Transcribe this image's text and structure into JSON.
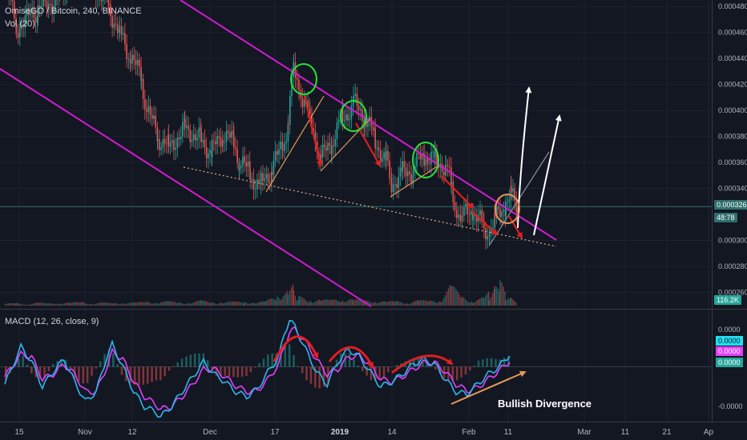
{
  "header": {
    "symbol_line": "OmiseGO / Bitcoin, 240, BINANCE",
    "vol_line": "Vol (20)",
    "macd_line": "MACD (12, 26, close, 9)"
  },
  "colors": {
    "background": "#131722",
    "up_candle": "#26a69a",
    "down_candle": "#ef5350",
    "channel": "#d21bd2",
    "macd_line": "#2ab6f0",
    "signal_line": "#e040fb",
    "arrow_red": "#e01f1f",
    "arrow_white": "#ffffff",
    "trend_orange": "#e59a5a",
    "circle_green": "#27e03b",
    "circle_orange": "#e5935a"
  },
  "price_badges": {
    "last_price": "0.000326",
    "countdown": "48:78",
    "volume": "116.2K"
  },
  "macd_badges": {
    "macd": "0.0000",
    "signal": "0.0000",
    "histogram": "0.0000"
  },
  "annotations": {
    "divergence_label": "Bullish Divergence"
  },
  "chart_data": {
    "type": "candlestick",
    "symbol": "OmiseGO / Bitcoin",
    "interval": "240",
    "exchange": "BINANCE",
    "price_axis": {
      "ticks": [
        "0.000480",
        "0.000460",
        "0.000440",
        "0.000420",
        "0.000400",
        "0.000380",
        "0.000360",
        "0.000340",
        "0.000300",
        "0.000280",
        "0.000260"
      ],
      "ylim": [
        0.000248,
        0.000485
      ]
    },
    "macd_axis": {
      "ticks": [
        "0.0000",
        "-0.0000"
      ]
    },
    "time_axis": {
      "labels": [
        "15",
        "Nov",
        "12",
        "Dec",
        "17",
        "2019",
        "14",
        "Feb",
        "11",
        "Mar",
        "11",
        "21",
        "Ap"
      ]
    },
    "price_path": [
      [
        0,
        0.000495
      ],
      [
        2,
        0.000465
      ],
      [
        6,
        0.000475
      ],
      [
        10,
        0.00049
      ],
      [
        14,
        0.00052
      ],
      [
        16,
        0.0005
      ],
      [
        19,
        0.00048
      ],
      [
        21,
        0.00046
      ],
      [
        23,
        0.00044
      ],
      [
        25,
        0.000425
      ],
      [
        26,
        0.0004
      ],
      [
        28,
        0.00038
      ],
      [
        30,
        0.000372
      ],
      [
        33,
        0.000388
      ],
      [
        36,
        0.000378
      ],
      [
        38,
        0.000368
      ],
      [
        40,
        0.000382
      ],
      [
        42,
        0.000375
      ],
      [
        43,
        0.000362
      ],
      [
        45,
        0.00035
      ],
      [
        47,
        0.000343
      ],
      [
        49,
        0.000355
      ],
      [
        51,
        0.000372
      ],
      [
        52,
        0.000392
      ],
      [
        53,
        0.000432
      ],
      [
        54,
        0.000418
      ],
      [
        56,
        0.000395
      ],
      [
        57,
        0.000378
      ],
      [
        58,
        0.000362
      ],
      [
        60,
        0.000375
      ],
      [
        62,
        0.000395
      ],
      [
        64,
        0.000405
      ],
      [
        66,
        0.000395
      ],
      [
        68,
        0.000378
      ],
      [
        70,
        0.00036
      ],
      [
        71,
        0.000345
      ],
      [
        73,
        0.000352
      ],
      [
        75,
        0.000355
      ],
      [
        77,
        0.000365
      ],
      [
        79,
        0.000362
      ],
      [
        81,
        0.000358
      ],
      [
        82,
        0.00034
      ],
      [
        83,
        0.000322
      ],
      [
        84,
        0.000318
      ],
      [
        86,
        0.000322
      ],
      [
        88,
        0.00031
      ],
      [
        89,
        0.000306
      ],
      [
        90,
        0.000315
      ],
      [
        92,
        0.000328
      ],
      [
        93,
        0.000334
      ],
      [
        94,
        0.000326
      ]
    ],
    "price_x_range": [
      0,
      130
    ],
    "volume_y_range": [
      0,
      300
    ],
    "volume": [
      [
        0,
        20
      ],
      [
        2,
        25
      ],
      [
        4,
        18
      ],
      [
        6,
        30
      ],
      [
        8,
        22
      ],
      [
        10,
        35
      ],
      [
        12,
        28
      ],
      [
        14,
        40
      ],
      [
        16,
        24
      ],
      [
        18,
        30
      ],
      [
        20,
        26
      ],
      [
        22,
        34
      ],
      [
        24,
        28
      ],
      [
        26,
        45
      ],
      [
        28,
        38
      ],
      [
        30,
        42
      ],
      [
        32,
        36
      ],
      [
        34,
        30
      ],
      [
        36,
        50
      ],
      [
        38,
        40
      ],
      [
        40,
        34
      ],
      [
        42,
        38
      ],
      [
        44,
        46
      ],
      [
        46,
        30
      ],
      [
        48,
        44
      ],
      [
        50,
        120
      ],
      [
        52,
        160
      ],
      [
        53,
        210
      ],
      [
        54,
        90
      ],
      [
        56,
        70
      ],
      [
        58,
        60
      ],
      [
        60,
        55
      ],
      [
        62,
        80
      ],
      [
        64,
        65
      ],
      [
        66,
        50
      ],
      [
        68,
        60
      ],
      [
        70,
        40
      ],
      [
        72,
        45
      ],
      [
        74,
        38
      ],
      [
        76,
        55
      ],
      [
        78,
        48
      ],
      [
        80,
        70
      ],
      [
        82,
        210
      ],
      [
        84,
        90
      ],
      [
        86,
        60
      ],
      [
        88,
        80
      ],
      [
        89,
        140
      ],
      [
        90,
        200
      ],
      [
        91,
        260
      ],
      [
        92,
        120
      ],
      [
        93,
        80
      ],
      [
        94,
        60
      ]
    ],
    "macd": [
      [
        0,
        -0.35
      ],
      [
        3,
        0.4
      ],
      [
        5,
        0.1
      ],
      [
        7,
        -0.4
      ],
      [
        9,
        -0.1
      ],
      [
        11,
        0.15
      ],
      [
        13,
        -0.3
      ],
      [
        15,
        -0.7
      ],
      [
        17,
        -0.5
      ],
      [
        19,
        0.2
      ],
      [
        20,
        0.45
      ],
      [
        22,
        0.0
      ],
      [
        24,
        -0.5
      ],
      [
        26,
        -0.8
      ],
      [
        28,
        -0.9
      ],
      [
        29,
        -1.0
      ],
      [
        31,
        -0.8
      ],
      [
        33,
        -0.5
      ],
      [
        35,
        -0.2
      ],
      [
        37,
        0.1
      ],
      [
        39,
        -0.15
      ],
      [
        41,
        -0.3
      ],
      [
        43,
        -0.5
      ],
      [
        45,
        -0.6
      ],
      [
        47,
        -0.45
      ],
      [
        49,
        -0.1
      ],
      [
        51,
        0.2
      ],
      [
        52,
        0.65
      ],
      [
        53,
        0.95
      ],
      [
        54,
        0.8
      ],
      [
        56,
        0.35
      ],
      [
        58,
        -0.1
      ],
      [
        60,
        -0.35
      ],
      [
        62,
        0.1
      ],
      [
        64,
        0.35
      ],
      [
        66,
        0.2
      ],
      [
        68,
        -0.1
      ],
      [
        70,
        -0.4
      ],
      [
        72,
        -0.3
      ],
      [
        74,
        -0.15
      ],
      [
        76,
        0.05
      ],
      [
        78,
        0.15
      ],
      [
        80,
        0.05
      ],
      [
        82,
        -0.25
      ],
      [
        84,
        -0.5
      ],
      [
        86,
        -0.55
      ],
      [
        88,
        -0.35
      ],
      [
        90,
        -0.15
      ],
      [
        92,
        0.0
      ],
      [
        94,
        0.25
      ]
    ],
    "signal": [
      [
        0,
        -0.2
      ],
      [
        3,
        0.25
      ],
      [
        5,
        0.2
      ],
      [
        7,
        -0.25
      ],
      [
        9,
        -0.15
      ],
      [
        11,
        0.05
      ],
      [
        13,
        -0.15
      ],
      [
        15,
        -0.5
      ],
      [
        17,
        -0.5
      ],
      [
        19,
        0.0
      ],
      [
        20,
        0.3
      ],
      [
        22,
        0.15
      ],
      [
        24,
        -0.3
      ],
      [
        26,
        -0.6
      ],
      [
        28,
        -0.75
      ],
      [
        29,
        -0.85
      ],
      [
        31,
        -0.8
      ],
      [
        33,
        -0.6
      ],
      [
        35,
        -0.35
      ],
      [
        37,
        -0.05
      ],
      [
        39,
        -0.05
      ],
      [
        41,
        -0.2
      ],
      [
        43,
        -0.38
      ],
      [
        45,
        -0.5
      ],
      [
        47,
        -0.48
      ],
      [
        49,
        -0.25
      ],
      [
        51,
        0.05
      ],
      [
        52,
        0.4
      ],
      [
        53,
        0.7
      ],
      [
        54,
        0.75
      ],
      [
        56,
        0.5
      ],
      [
        58,
        0.15
      ],
      [
        60,
        -0.15
      ],
      [
        62,
        -0.05
      ],
      [
        64,
        0.2
      ],
      [
        66,
        0.22
      ],
      [
        68,
        0.05
      ],
      [
        70,
        -0.25
      ],
      [
        72,
        -0.3
      ],
      [
        74,
        -0.2
      ],
      [
        76,
        -0.05
      ],
      [
        78,
        0.08
      ],
      [
        80,
        0.08
      ],
      [
        82,
        -0.1
      ],
      [
        84,
        -0.35
      ],
      [
        86,
        -0.48
      ],
      [
        88,
        -0.42
      ],
      [
        90,
        -0.25
      ],
      [
        92,
        -0.08
      ],
      [
        94,
        0.12
      ]
    ],
    "macd_range": [
      -1.1,
      1.1
    ]
  }
}
